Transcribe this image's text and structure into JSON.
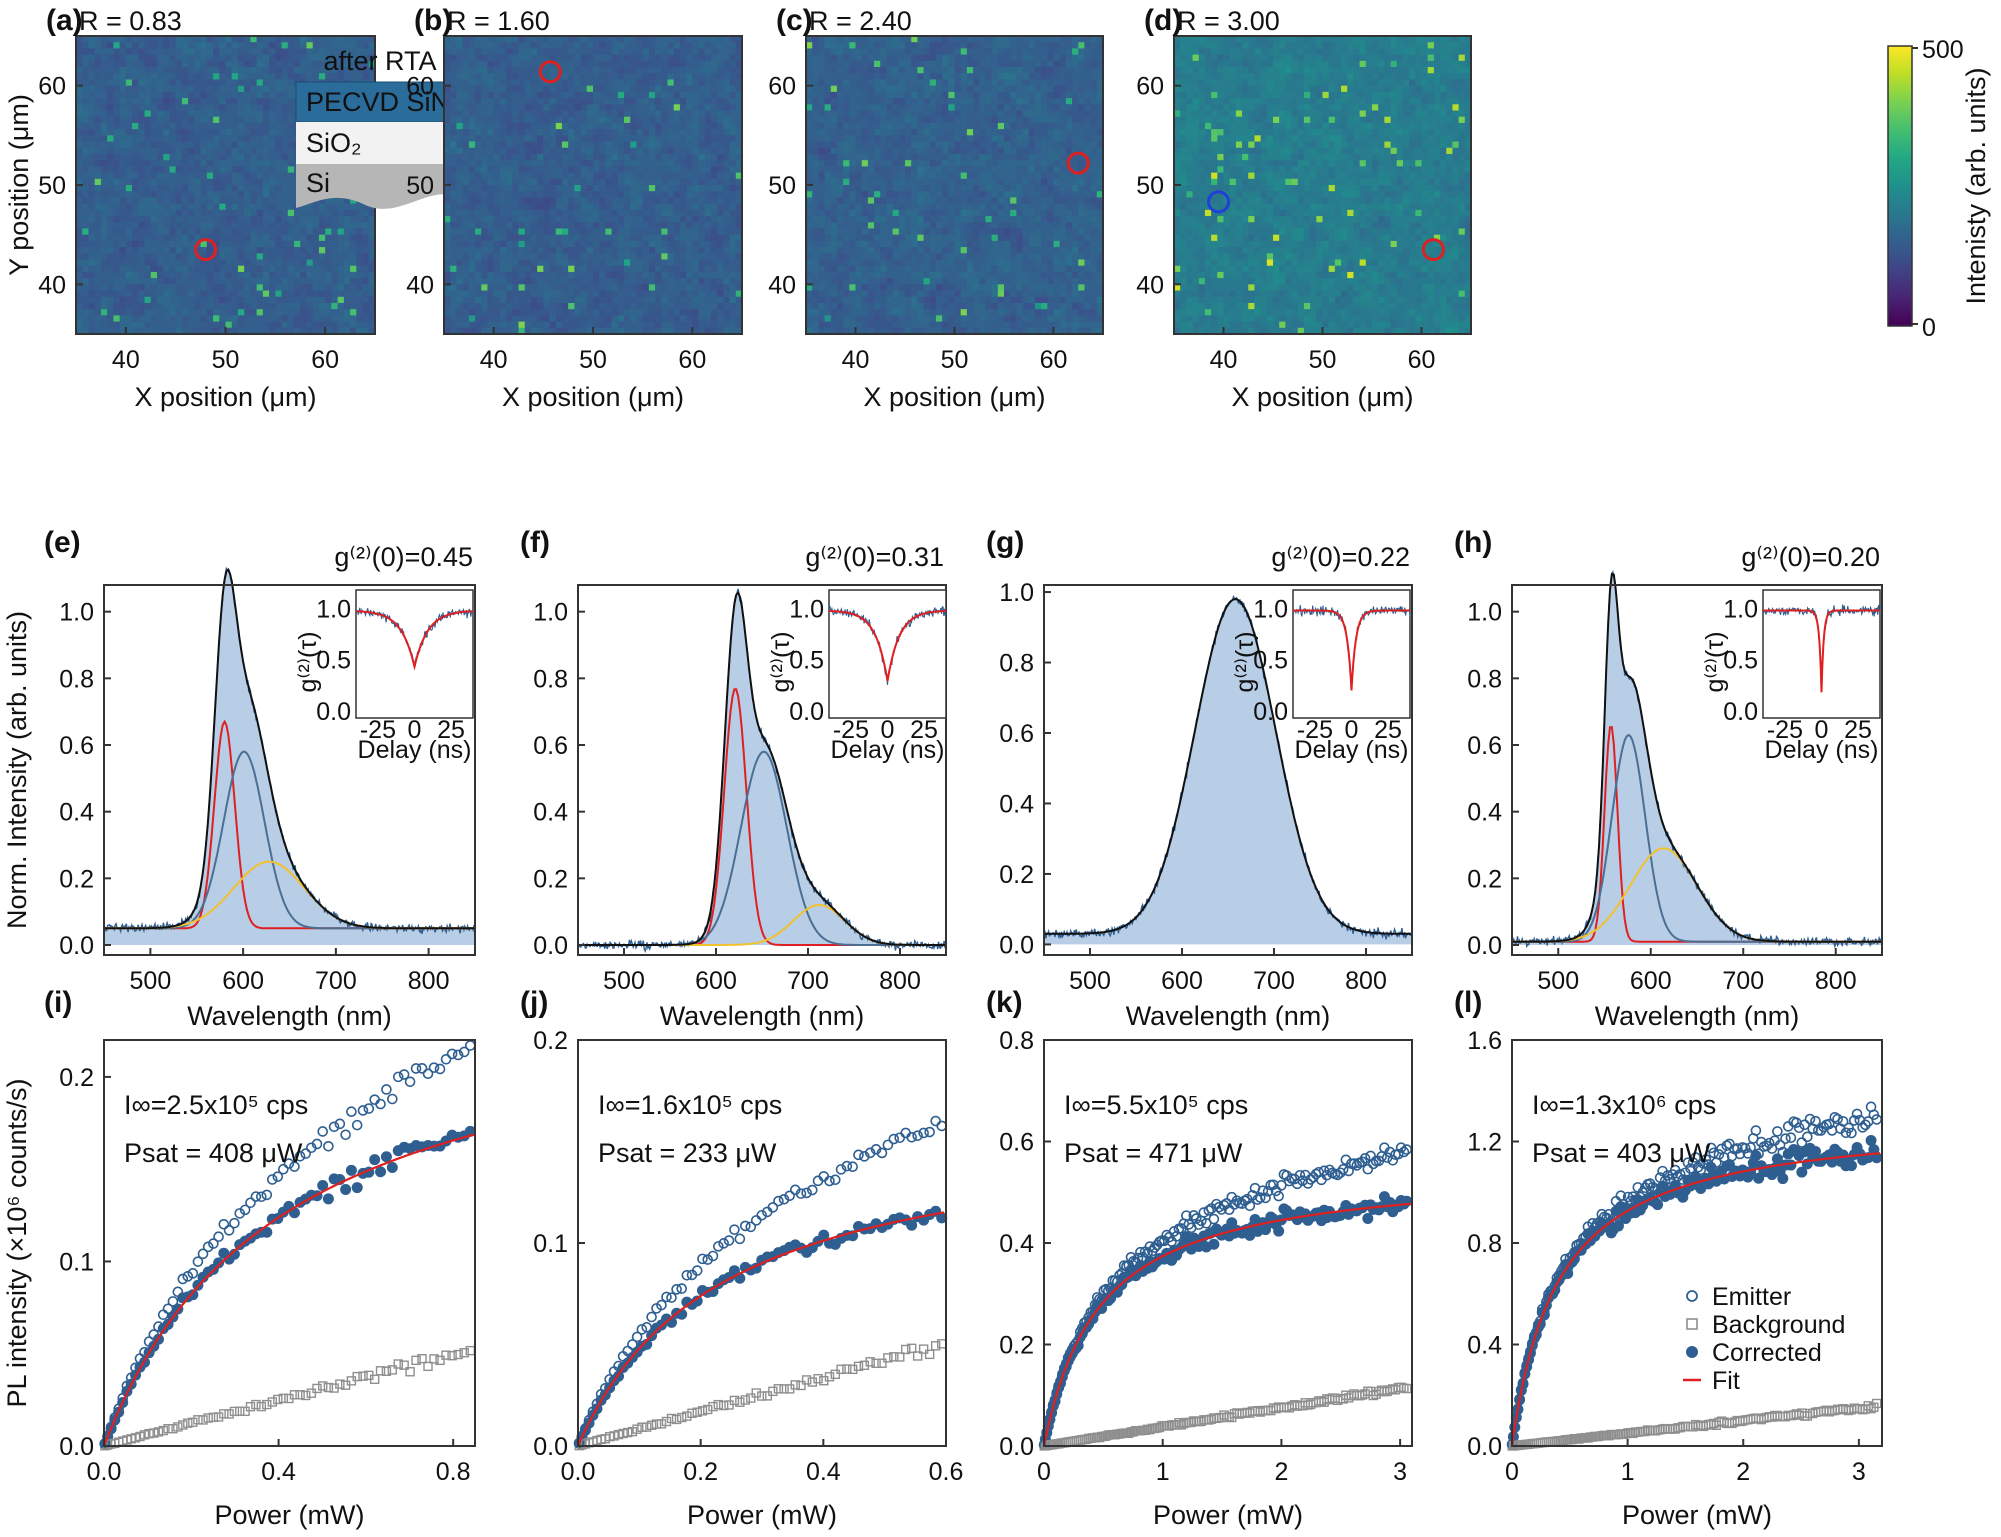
{
  "figure_description_labels": [
    "(a)",
    "(b)",
    "(c)",
    "(d)",
    "(e)",
    "(f)",
    "(g)",
    "(h)",
    "(i)",
    "(j)",
    "(k)",
    "(l)"
  ],
  "colors": {
    "map_low": "#440154",
    "map_mid": "#21918c",
    "map_high": "#fde725",
    "spectrum_fill": "#b8cde6",
    "data_blue": "#2f5f91",
    "fit_red": "#e02020",
    "fit_yellow": "#f2c12e",
    "fit_steel": "#4a6f93",
    "background_gray": "#8f8f8f"
  },
  "chart_data": [
    {
      "type": "heatmap",
      "panel": "(a)",
      "title": "R = 0.83",
      "xlabel": "X position (μm)",
      "ylabel": "Y position (μm)",
      "xlim": [
        35,
        65
      ],
      "ylim": [
        35,
        65
      ],
      "xticks": [
        40,
        50,
        60
      ],
      "yticks": [
        40,
        50,
        60
      ],
      "circle": {
        "x": 48,
        "y": 43.5,
        "color": "#e02020"
      },
      "inset": {
        "title": "after RTA",
        "layers": [
          "PECVD SiN",
          "SiO₂",
          "Si"
        ]
      }
    },
    {
      "type": "heatmap",
      "panel": "(b)",
      "title": "R = 1.60",
      "xlabel": "X position (μm)",
      "xlim": [
        35,
        65
      ],
      "ylim": [
        35,
        65
      ],
      "xticks": [
        40,
        50,
        60
      ],
      "yticks": [
        40,
        50,
        60
      ],
      "circle": {
        "x": 45.7,
        "y": 61.4,
        "color": "#e02020"
      }
    },
    {
      "type": "heatmap",
      "panel": "(c)",
      "title": "R = 2.40",
      "xlabel": "X position (μm)",
      "xlim": [
        35,
        65
      ],
      "ylim": [
        35,
        65
      ],
      "xticks": [
        40,
        50,
        60
      ],
      "yticks": [
        40,
        50,
        60
      ],
      "circle": {
        "x": 62.5,
        "y": 52.2,
        "color": "#e02020"
      }
    },
    {
      "type": "heatmap",
      "panel": "(d)",
      "title": "R = 3.00",
      "xlabel": "X position (μm)",
      "xlim": [
        35,
        65
      ],
      "ylim": [
        35,
        65
      ],
      "xticks": [
        40,
        50,
        60
      ],
      "yticks": [
        40,
        50,
        60
      ],
      "circles": [
        {
          "x": 39.5,
          "y": 48.3,
          "color": "#1f3fd6"
        },
        {
          "x": 61.2,
          "y": 43.5,
          "color": "#e02020"
        }
      ],
      "colorbar": {
        "label": "Intenisty (arb. units)",
        "min": 0,
        "max": 500,
        "ticks": [
          "500",
          "0"
        ]
      }
    },
    {
      "type": "area",
      "panel": "(e)",
      "title": "g⁽²⁾(0)=0.45",
      "xlabel": "Wavelength (nm)",
      "ylabel": "Norm. Intensity (arb. units)",
      "xlim": [
        450,
        850
      ],
      "ylim": [
        -0.03,
        1.08
      ],
      "xticks": [
        500,
        600,
        700,
        800
      ],
      "yticks": [
        "0.0",
        "0.2",
        "0.4",
        "0.6",
        "0.8",
        "1.0"
      ],
      "baseline": 0.05,
      "peaks": [
        {
          "center": 580,
          "sigma": 11,
          "amp": 0.62,
          "color": "#e02020"
        },
        {
          "center": 601,
          "sigma": 22,
          "amp": 0.53,
          "color": "#4a6f93"
        },
        {
          "center": 628,
          "sigma": 38,
          "amp": 0.2,
          "color": "#f2c12e"
        }
      ],
      "inset": {
        "g0": 0.45,
        "width_ns": 9,
        "xlabel": "Delay (ns)",
        "ylabel": "g⁽²⁾(τ)",
        "xticks": [
          "-25",
          "0",
          "25"
        ],
        "yticks": [
          "0.0",
          "0.5",
          "1.0"
        ]
      }
    },
    {
      "type": "area",
      "panel": "(f)",
      "title": "g⁽²⁾(0)=0.31",
      "xlabel": "Wavelength (nm)",
      "xlim": [
        450,
        850
      ],
      "ylim": [
        -0.03,
        1.08
      ],
      "xticks": [
        500,
        600,
        700,
        800
      ],
      "yticks": [
        "0.0",
        "0.2",
        "0.4",
        "0.6",
        "0.8",
        "1.0"
      ],
      "baseline": 0.0,
      "peaks": [
        {
          "center": 621,
          "sigma": 12,
          "amp": 0.77,
          "color": "#e02020"
        },
        {
          "center": 652,
          "sigma": 25,
          "amp": 0.58,
          "color": "#4a6f93"
        },
        {
          "center": 712,
          "sigma": 28,
          "amp": 0.12,
          "color": "#f2c12e"
        }
      ],
      "inset": {
        "g0": 0.31,
        "width_ns": 8,
        "xlabel": "Delay (ns)",
        "ylabel": "g⁽²⁾(τ)",
        "xticks": [
          "-25",
          "0",
          "25"
        ],
        "yticks": [
          "0.0",
          "0.5",
          "1.0"
        ]
      }
    },
    {
      "type": "area",
      "panel": "(g)",
      "title": "g⁽²⁾(0)=0.22",
      "xlabel": "Wavelength (nm)",
      "xlim": [
        450,
        850
      ],
      "ylim": [
        -0.03,
        1.02
      ],
      "xticks": [
        500,
        600,
        700,
        800
      ],
      "yticks": [
        "0.0",
        "0.2",
        "0.4",
        "0.6",
        "0.8",
        "1.0"
      ],
      "baseline": 0.03,
      "peaks": [
        {
          "center": 658,
          "sigma": 44,
          "amp": 0.95,
          "color": "none"
        }
      ],
      "inset": {
        "g0": 0.22,
        "width_ns": 3,
        "xlabel": "Delay (ns)",
        "ylabel": "g⁽²⁾(τ)",
        "xticks": [
          "-25",
          "0",
          "25"
        ],
        "yticks": [
          "0.0",
          "0.5",
          "1.0"
        ]
      }
    },
    {
      "type": "area",
      "panel": "(h)",
      "title": "g⁽²⁾(0)=0.20",
      "xlabel": "Wavelength (nm)",
      "xlim": [
        450,
        850
      ],
      "ylim": [
        -0.03,
        1.08
      ],
      "xticks": [
        500,
        600,
        700,
        800
      ],
      "yticks": [
        "0.0",
        "0.2",
        "0.4",
        "0.6",
        "0.8",
        "1.0"
      ],
      "baseline": 0.01,
      "peaks": [
        {
          "center": 557,
          "sigma": 7,
          "amp": 0.65,
          "color": "#e02020"
        },
        {
          "center": 576,
          "sigma": 18,
          "amp": 0.62,
          "color": "#4a6f93"
        },
        {
          "center": 614,
          "sigma": 36,
          "amp": 0.28,
          "color": "#f2c12e"
        }
      ],
      "inset": {
        "g0": 0.2,
        "width_ns": 1.5,
        "xlabel": "Delay (ns)",
        "ylabel": "g⁽²⁾(τ)",
        "xticks": [
          "-25",
          "0",
          "25"
        ],
        "yticks": [
          "0.0",
          "0.5",
          "1.0"
        ]
      }
    },
    {
      "type": "scatter",
      "panel": "(i)",
      "xlabel": "Power (mW)",
      "ylabel": "PL intensity (×10⁶ counts/s)",
      "xlim": [
        0,
        0.85
      ],
      "ylim": [
        0,
        0.22
      ],
      "xticks": [
        "0.0",
        "0.4",
        "0.8"
      ],
      "xtickvals": [
        0,
        0.4,
        0.8
      ],
      "yticks": [
        "0.0",
        "0.1",
        "0.2"
      ],
      "ytickvals": [
        0,
        0.1,
        0.2
      ],
      "annot": [
        "I∞=2.5x10⁵ cps",
        "Psat = 408 μW"
      ],
      "I_inf": 0.25,
      "P_sat": 0.408,
      "bg_slope": 0.062
    },
    {
      "type": "scatter",
      "panel": "(j)",
      "xlabel": "Power (mW)",
      "xlim": [
        0,
        0.6
      ],
      "ylim": [
        0,
        0.2
      ],
      "xticks": [
        "0.0",
        "0.2",
        "0.4",
        "0.6"
      ],
      "xtickvals": [
        0,
        0.2,
        0.4,
        0.6
      ],
      "yticks": [
        "0.0",
        "0.1",
        "0.2"
      ],
      "ytickvals": [
        0,
        0.1,
        0.2
      ],
      "annot": [
        "I∞=1.6x10⁵ cps",
        "Psat = 233 μW"
      ],
      "I_inf": 0.16,
      "P_sat": 0.233,
      "bg_slope": 0.085
    },
    {
      "type": "scatter",
      "panel": "(k)",
      "xlabel": "Power (mW)",
      "xlim": [
        0,
        3.1
      ],
      "ylim": [
        0,
        0.8
      ],
      "xticks": [
        "0",
        "1",
        "2",
        "3"
      ],
      "xtickvals": [
        0,
        1,
        2,
        3
      ],
      "yticks": [
        "0.0",
        "0.2",
        "0.4",
        "0.6",
        "0.8"
      ],
      "ytickvals": [
        0,
        0.2,
        0.4,
        0.6,
        0.8
      ],
      "annot": [
        "I∞=5.5x10⁵ cps",
        "Psat = 471 μW"
      ],
      "I_inf": 0.55,
      "P_sat": 0.471,
      "bg_slope": 0.038
    },
    {
      "type": "scatter",
      "panel": "(l)",
      "xlabel": "Power (mW)",
      "xlim": [
        0,
        3.2
      ],
      "ylim": [
        0,
        1.6
      ],
      "xticks": [
        "0",
        "1",
        "2",
        "3"
      ],
      "xtickvals": [
        0,
        1,
        2,
        3
      ],
      "yticks": [
        "0.0",
        "0.4",
        "0.8",
        "1.2",
        "1.6"
      ],
      "ytickvals": [
        0,
        0.4,
        0.8,
        1.2,
        1.6
      ],
      "annot": [
        "I∞=1.3x10⁶ cps",
        "Psat = 403 μW"
      ],
      "I_inf": 1.3,
      "P_sat": 0.403,
      "bg_slope": 0.05,
      "legend": [
        "Emitter",
        "Background",
        "Corrected",
        "Fit"
      ]
    }
  ]
}
